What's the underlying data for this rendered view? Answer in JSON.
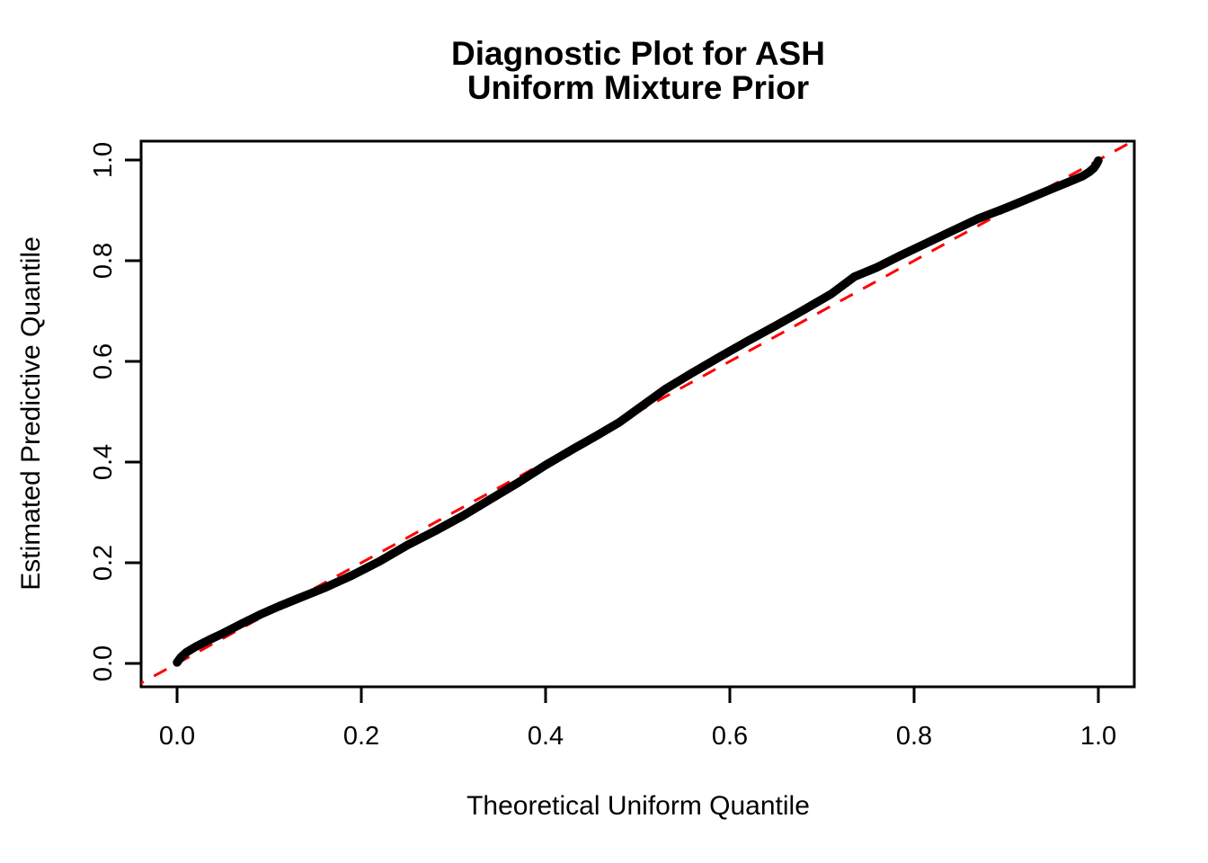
{
  "window": {
    "background": "#FFFFFF"
  },
  "title": {
    "line1": "Diagnostic Plot for ASH",
    "line2": "Uniform Mixture Prior"
  },
  "colors": {
    "curve": "#000000",
    "reference_line": "#FF0000",
    "axis": "#000000",
    "text": "#000000",
    "background": "#FFFFFF"
  },
  "chart_data": {
    "type": "line",
    "title": "Diagnostic Plot for ASH\nUniform Mixture Prior",
    "xlabel": "Theoretical Uniform Quantile",
    "ylabel": "Estimated Predictive Quantile",
    "xlim": [
      -0.04,
      1.04
    ],
    "ylim": [
      -0.04,
      1.04
    ],
    "grid": false,
    "legend": "none",
    "x_ticks": {
      "values": [
        0.0,
        0.2,
        0.4,
        0.6,
        0.8,
        1.0
      ],
      "labels": [
        "0.0",
        "0.2",
        "0.4",
        "0.6",
        "0.8",
        "1.0"
      ]
    },
    "y_ticks": {
      "values": [
        0.0,
        0.2,
        0.4,
        0.6,
        0.8,
        1.0
      ],
      "labels": [
        "0.0",
        "0.2",
        "0.4",
        "0.6",
        "0.8",
        "1.0"
      ]
    },
    "series": [
      {
        "name": "estimated-predictive-quantiles",
        "kind": "thick solid curve",
        "color": "#000000",
        "line_width": 9.5,
        "dash": "solid",
        "points": [
          [
            0.0,
            0.002
          ],
          [
            0.004,
            0.012
          ],
          [
            0.01,
            0.022
          ],
          [
            0.02,
            0.033
          ],
          [
            0.035,
            0.047
          ],
          [
            0.05,
            0.06
          ],
          [
            0.07,
            0.079
          ],
          [
            0.09,
            0.097
          ],
          [
            0.11,
            0.113
          ],
          [
            0.13,
            0.128
          ],
          [
            0.16,
            0.15
          ],
          [
            0.19,
            0.175
          ],
          [
            0.22,
            0.203
          ],
          [
            0.25,
            0.235
          ],
          [
            0.28,
            0.263
          ],
          [
            0.31,
            0.293
          ],
          [
            0.34,
            0.326
          ],
          [
            0.37,
            0.359
          ],
          [
            0.4,
            0.394
          ],
          [
            0.43,
            0.426
          ],
          [
            0.455,
            0.452
          ],
          [
            0.48,
            0.479
          ],
          [
            0.505,
            0.512
          ],
          [
            0.53,
            0.545
          ],
          [
            0.56,
            0.578
          ],
          [
            0.59,
            0.61
          ],
          [
            0.62,
            0.641
          ],
          [
            0.65,
            0.671
          ],
          [
            0.68,
            0.702
          ],
          [
            0.71,
            0.734
          ],
          [
            0.735,
            0.768
          ],
          [
            0.76,
            0.787
          ],
          [
            0.785,
            0.81
          ],
          [
            0.81,
            0.832
          ],
          [
            0.84,
            0.858
          ],
          [
            0.87,
            0.884
          ],
          [
            0.9,
            0.905
          ],
          [
            0.925,
            0.924
          ],
          [
            0.95,
            0.943
          ],
          [
            0.97,
            0.958
          ],
          [
            0.983,
            0.968
          ],
          [
            0.99,
            0.976
          ],
          [
            0.995,
            0.984
          ],
          [
            0.998,
            0.992
          ],
          [
            1.0,
            0.999
          ]
        ]
      },
      {
        "name": "identity-reference-line",
        "kind": "dashed diagonal y = x",
        "color": "#FF0000",
        "line_width": 3,
        "dash": "dashed",
        "points": [
          [
            -0.05,
            -0.05
          ],
          [
            1.05,
            1.05
          ]
        ]
      }
    ]
  }
}
